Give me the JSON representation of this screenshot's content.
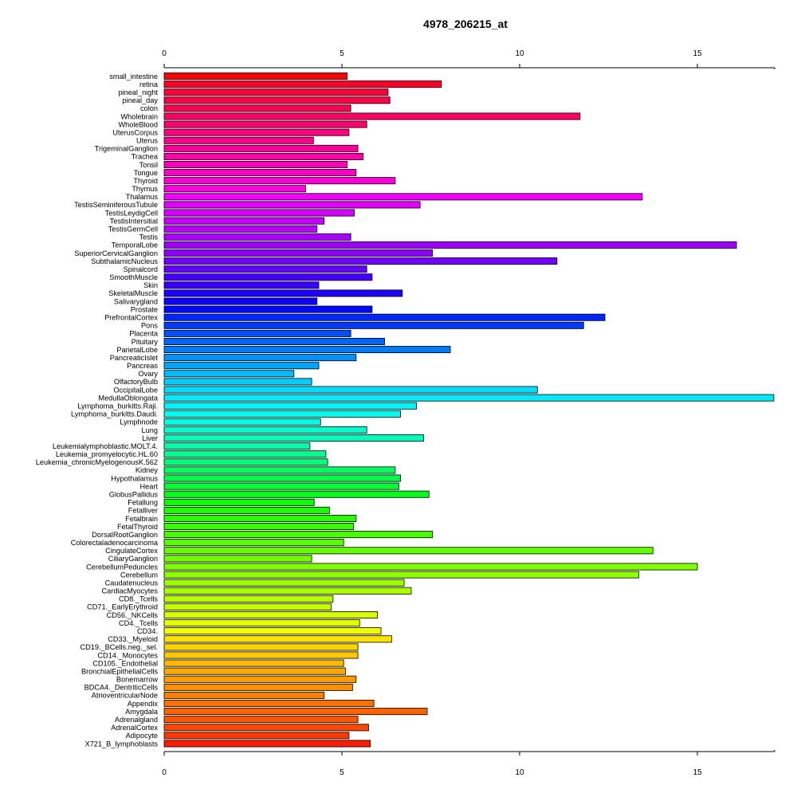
{
  "chart_data": {
    "type": "bar",
    "orientation": "horizontal",
    "title": "4978_206215_at",
    "xlabel": "",
    "ylabel": "",
    "xlim": [
      0,
      17.2
    ],
    "x_ticks": [
      0,
      5,
      10,
      15
    ],
    "x_tick_labels": [
      "0",
      "5",
      "10",
      "15"
    ],
    "grid": false,
    "legend": "none",
    "categories": [
      "small_intestine",
      "retina",
      "pineal_night",
      "pineal_day",
      "colon",
      "Wholebrain",
      "WholeBlood",
      "UterusCorpus",
      "Uterus",
      "TrigeminalGanglion",
      "Trachea",
      "Tonsil",
      "Tongue",
      "Thyroid",
      "Thymus",
      "Thalamus",
      "TestisSeminiferousTubule",
      "TestisLeydigCell",
      "TestisIntersitial",
      "TestisGermCell",
      "Testis",
      "TemporalLobe",
      "SuperiorCervicalGanglion",
      "SubthalamicNucleus",
      "Spinalcord",
      "SmoothMuscle",
      "Skin",
      "SkeletalMuscle",
      "Salivarygland",
      "Prostate",
      "PrefrontalCortex",
      "Pons",
      "Placenta",
      "Pituitary",
      "ParietalLobe",
      "PancreaticIslet",
      "Pancreas",
      "Ovary",
      "OlfactoryBulb",
      "OccipitalLobe",
      "MedullaOblongata",
      "Lymphoma_burkitts.Raji.",
      "Lymphoma_burkitts.Daudi.",
      "Lymphnode",
      "Lung",
      "Liver",
      "Leukemialymphoblastic.MOLT.4.",
      "Leukemia_promyelocytic.HL.60",
      "Leukemia_chronicMyelogenousK.562",
      "Kidney",
      "Hypothalamus",
      "Heart",
      "GlobusPallidus",
      "Fetallung",
      "Fetalliver",
      "Fetalbrain",
      "FetalThyroid",
      "DorsalRootGanglion",
      "Colorectaladenocarcinoma",
      "CingulateCortex",
      "CiliaryGanglion",
      "CerebellumPeduncles",
      "Cerebellum",
      "Caudatenucleus",
      "CardiacMyocytes",
      "CD8._Tcells",
      "CD71._EarlyErythroid",
      "CD56._NKCells",
      "CD4._Tcells",
      "CD34.",
      "CD33._Myeloid",
      "CD19._BCells.neg._sel.",
      "CD14._Monocytes",
      "CD105._Endothelial",
      "BronchialEpithelialCells",
      "Bonemarrow",
      "BDCA4._DentriticCells",
      "AtrioventricularNode",
      "Appendix",
      "Amygdala",
      "Adrenalgland",
      "AdrenalCortex",
      "Adipocyte",
      "X721_B_lymphoblasts"
    ],
    "values": [
      5.15,
      7.8,
      6.3,
      6.35,
      5.25,
      11.7,
      5.7,
      5.2,
      4.2,
      5.45,
      5.6,
      5.15,
      5.4,
      6.5,
      3.98,
      13.45,
      7.2,
      5.35,
      4.5,
      4.3,
      5.25,
      16.1,
      7.55,
      11.05,
      5.7,
      5.85,
      4.35,
      6.7,
      4.3,
      5.85,
      12.4,
      11.8,
      5.25,
      6.2,
      8.05,
      5.4,
      4.35,
      3.65,
      4.15,
      10.5,
      17.15,
      7.1,
      6.65,
      4.4,
      5.7,
      7.3,
      4.1,
      4.55,
      4.6,
      6.5,
      6.65,
      6.6,
      7.45,
      4.22,
      4.65,
      5.4,
      5.33,
      7.55,
      5.05,
      13.75,
      4.15,
      15.0,
      13.35,
      6.75,
      6.95,
      4.75,
      4.7,
      6.0,
      5.5,
      6.1,
      6.4,
      5.45,
      5.45,
      5.05,
      5.1,
      5.4,
      5.3,
      4.5,
      5.9,
      7.4,
      5.45,
      5.75,
      5.2,
      5.8
    ],
    "bar_colors": [
      "#ff0000",
      "#ff002a",
      "#ff0038",
      "#ff0047",
      "#ff0055",
      "#ff0063",
      "#ff0071",
      "#ff0080",
      "#ff008e",
      "#ff009c",
      "#ff00aa",
      "#ff00b8",
      "#ff00c7",
      "#ff00d5",
      "#ff00e3",
      "#f100ff",
      "#e300ff",
      "#d500ff",
      "#c700ff",
      "#b800ff",
      "#aa00ff",
      "#9c00ff",
      "#8e00ff",
      "#7100ff",
      "#6300ff",
      "#4700ff",
      "#3800ff",
      "#1c00ff",
      "#0e00ff",
      "#0008ff",
      "#0025ff",
      "#0039ff",
      "#004fff",
      "#0065ff",
      "#007bff",
      "#0090ff",
      "#00a6ff",
      "#00bbff",
      "#00cdff",
      "#00dcff",
      "#00eaff",
      "#00f5ff",
      "#00ffef",
      "#00ffe0",
      "#00ffce",
      "#00ffbb",
      "#00ffa6",
      "#00ff8f",
      "#00ff78",
      "#00ff60",
      "#00ff48",
      "#00ff30",
      "#00ff18",
      "#0aff00",
      "#1cff00",
      "#2aff00",
      "#38ff00",
      "#47ff00",
      "#55ff00",
      "#63ff00",
      "#71ff00",
      "#80ff00",
      "#8eff00",
      "#9cff00",
      "#aaff00",
      "#b8ff00",
      "#c7ff00",
      "#d5ff00",
      "#e3ff00",
      "#f1ff00",
      "#ffe300",
      "#ffd500",
      "#ffc700",
      "#ffb800",
      "#ffaa00",
      "#ff9c00",
      "#ff8e00",
      "#ff8000",
      "#ff7100",
      "#ff6300",
      "#ff5500",
      "#ff4700",
      "#ff3800",
      "#ff1c00"
    ]
  }
}
